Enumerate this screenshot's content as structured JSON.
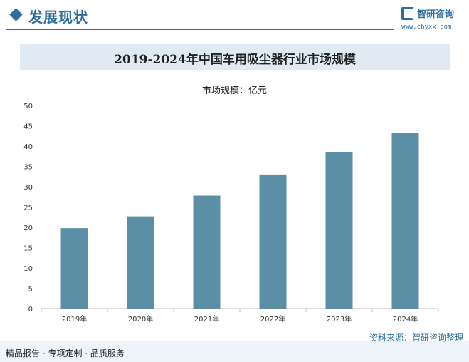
{
  "header": {
    "section_title": "发展现状",
    "logo_name": "智研咨询",
    "logo_url": "www.chyxx.com"
  },
  "footer": {
    "tagline": "精品报告 · 专项定制 · 品质服务",
    "source": "资料来源：智研咨询整理"
  },
  "colors": {
    "bar": "#5b8fa5",
    "accent": "#2d6e9e",
    "title_band": "#dfeaf3"
  },
  "chart_data": {
    "type": "bar",
    "title": "2019-2024年中国车用吸尘器行业市场规模",
    "unit_label": "市场规模：亿元",
    "categories": [
      "2019年",
      "2020年",
      "2021年",
      "2022年",
      "2023年",
      "2024年"
    ],
    "values": [
      19.8,
      22.7,
      27.8,
      33.0,
      38.6,
      43.3
    ],
    "ylim": [
      0,
      50
    ],
    "yticks": [
      0,
      5,
      10,
      15,
      20,
      25,
      30,
      35,
      40,
      45,
      50
    ],
    "grid": false,
    "legend": "none"
  }
}
